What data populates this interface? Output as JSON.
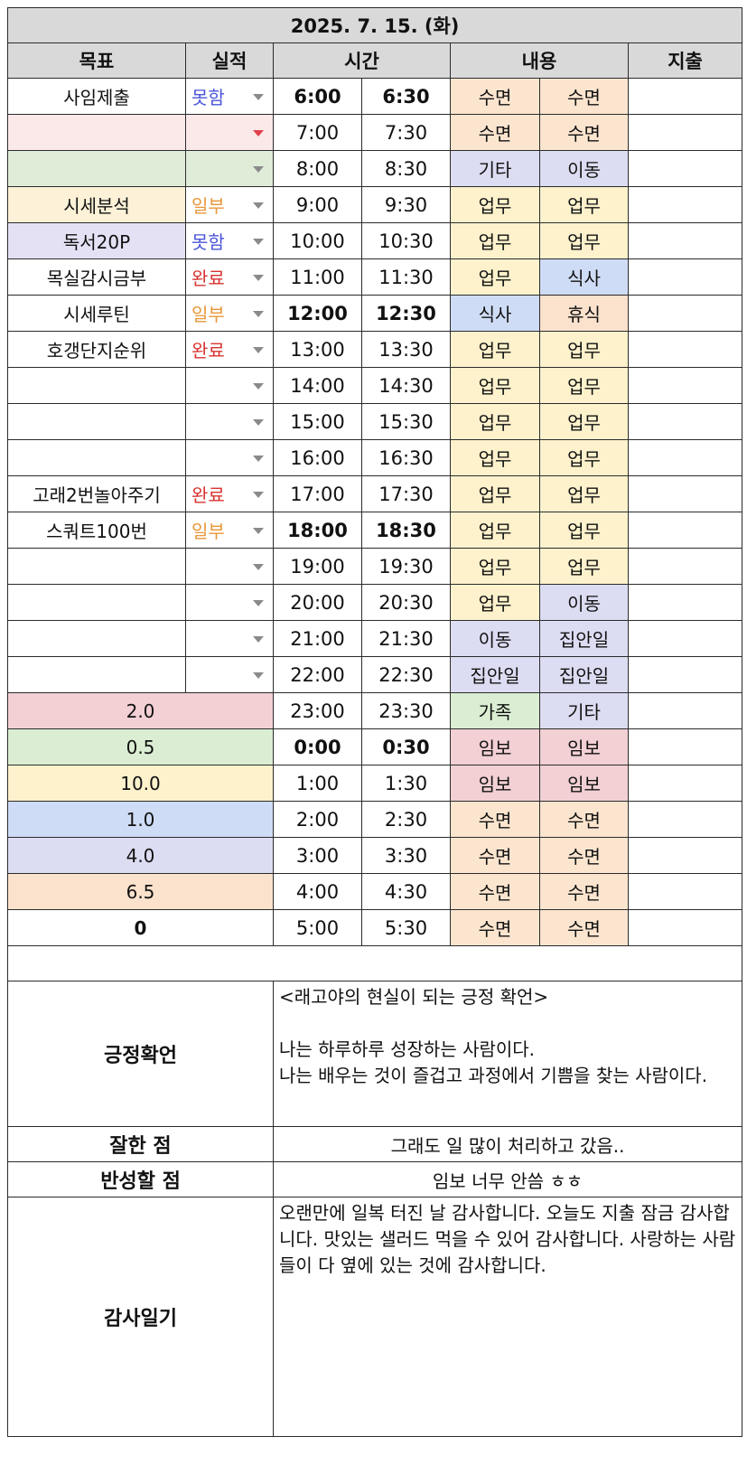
{
  "date": "2025. 7. 15. (화)",
  "headers": {
    "goal": "목표",
    "perf": "실적",
    "time": "시간",
    "content": "내용",
    "expense": "지출"
  },
  "colors": {
    "header_bg": "#d9d9d9",
    "sleep": "#fbe5cf",
    "work": "#fdf2cc",
    "etc": "#dcdcf2",
    "meal": "#cfdcf5",
    "rest": "#fbe2cd",
    "family": "#dbeed3",
    "study": "#f2d0d3",
    "goal_pink": "#fbe9ea",
    "goal_green": "#dfecd8",
    "goal_yellow": "#fdf2d8",
    "goal_lavender": "#e4e1f4",
    "perf_fail": "#4a55d8",
    "perf_partial": "#e8973a",
    "perf_done": "#d8322f"
  },
  "rows": [
    {
      "goal": "사임제출",
      "goal_bg": "#ffffff",
      "perf": "못함",
      "perf_color": "#4a55d8",
      "arrow": "gray",
      "t1": "6:00",
      "t2": "6:30",
      "bold": true,
      "c1": "수면",
      "c1bg": "#fbe5cf",
      "c2": "수면",
      "c2bg": "#fbe5cf"
    },
    {
      "goal": "",
      "goal_bg": "#fbe9ea",
      "perf": "",
      "perf_color": "#111111",
      "arrow": "red",
      "perf_bg": "#fbe9ea",
      "t1": "7:00",
      "t2": "7:30",
      "bold": false,
      "c1": "수면",
      "c1bg": "#fbe5cf",
      "c2": "수면",
      "c2bg": "#fbe5cf"
    },
    {
      "goal": "",
      "goal_bg": "#dfecd8",
      "perf": "",
      "perf_color": "#111111",
      "arrow": "gray",
      "perf_bg": "#dfecd8",
      "t1": "8:00",
      "t2": "8:30",
      "bold": false,
      "c1": "기타",
      "c1bg": "#dcdcf2",
      "c2": "이동",
      "c2bg": "#dcdcf2"
    },
    {
      "goal": "시세분석",
      "goal_bg": "#fdf2d8",
      "perf": "일부",
      "perf_color": "#e8973a",
      "arrow": "gray",
      "t1": "9:00",
      "t2": "9:30",
      "bold": false,
      "c1": "업무",
      "c1bg": "#fdf2cc",
      "c2": "업무",
      "c2bg": "#fdf2cc"
    },
    {
      "goal": "독서20P",
      "goal_bg": "#e4e1f4",
      "perf": "못함",
      "perf_color": "#4a55d8",
      "arrow": "gray",
      "t1": "10:00",
      "t2": "10:30",
      "bold": false,
      "c1": "업무",
      "c1bg": "#fdf2cc",
      "c2": "업무",
      "c2bg": "#fdf2cc"
    },
    {
      "goal": "목실감시금부",
      "goal_bg": "#ffffff",
      "perf": "완료",
      "perf_color": "#d8322f",
      "arrow": "gray",
      "t1": "11:00",
      "t2": "11:30",
      "bold": false,
      "c1": "업무",
      "c1bg": "#fdf2cc",
      "c2": "식사",
      "c2bg": "#cfdcf5"
    },
    {
      "goal": "시세루틴",
      "goal_bg": "#ffffff",
      "perf": "일부",
      "perf_color": "#e8973a",
      "arrow": "gray",
      "t1": "12:00",
      "t2": "12:30",
      "bold": true,
      "c1": "식사",
      "c1bg": "#cfdcf5",
      "c2": "휴식",
      "c2bg": "#fbe2cd"
    },
    {
      "goal": "호갱단지순위",
      "goal_bg": "#ffffff",
      "perf": "완료",
      "perf_color": "#d8322f",
      "arrow": "gray",
      "t1": "13:00",
      "t2": "13:30",
      "bold": false,
      "c1": "업무",
      "c1bg": "#fdf2cc",
      "c2": "업무",
      "c2bg": "#fdf2cc"
    },
    {
      "goal": "",
      "goal_bg": "#ffffff",
      "perf": "",
      "perf_color": "#111111",
      "arrow": "gray",
      "t1": "14:00",
      "t2": "14:30",
      "bold": false,
      "c1": "업무",
      "c1bg": "#fdf2cc",
      "c2": "업무",
      "c2bg": "#fdf2cc"
    },
    {
      "goal": "",
      "goal_bg": "#ffffff",
      "perf": "",
      "perf_color": "#111111",
      "arrow": "gray",
      "t1": "15:00",
      "t2": "15:30",
      "bold": false,
      "c1": "업무",
      "c1bg": "#fdf2cc",
      "c2": "업무",
      "c2bg": "#fdf2cc"
    },
    {
      "goal": "",
      "goal_bg": "#ffffff",
      "perf": "",
      "perf_color": "#111111",
      "arrow": "gray",
      "t1": "16:00",
      "t2": "16:30",
      "bold": false,
      "c1": "업무",
      "c1bg": "#fdf2cc",
      "c2": "업무",
      "c2bg": "#fdf2cc"
    },
    {
      "goal": "고래2번놀아주기",
      "goal_bg": "#ffffff",
      "perf": "완료",
      "perf_color": "#d8322f",
      "arrow": "gray",
      "t1": "17:00",
      "t2": "17:30",
      "bold": false,
      "c1": "업무",
      "c1bg": "#fdf2cc",
      "c2": "업무",
      "c2bg": "#fdf2cc"
    },
    {
      "goal": "스쿼트100번",
      "goal_bg": "#ffffff",
      "perf": "일부",
      "perf_color": "#e8973a",
      "arrow": "gray",
      "t1": "18:00",
      "t2": "18:30",
      "bold": true,
      "c1": "업무",
      "c1bg": "#fdf2cc",
      "c2": "업무",
      "c2bg": "#fdf2cc"
    },
    {
      "goal": "",
      "goal_bg": "#ffffff",
      "perf": "",
      "perf_color": "#111111",
      "arrow": "gray",
      "t1": "19:00",
      "t2": "19:30",
      "bold": false,
      "c1": "업무",
      "c1bg": "#fdf2cc",
      "c2": "업무",
      "c2bg": "#fdf2cc"
    },
    {
      "goal": "",
      "goal_bg": "#ffffff",
      "perf": "",
      "perf_color": "#111111",
      "arrow": "gray",
      "t1": "20:00",
      "t2": "20:30",
      "bold": false,
      "c1": "업무",
      "c1bg": "#fdf2cc",
      "c2": "이동",
      "c2bg": "#dcdcf2"
    },
    {
      "goal": "",
      "goal_bg": "#ffffff",
      "perf": "",
      "perf_color": "#111111",
      "arrow": "gray",
      "t1": "21:00",
      "t2": "21:30",
      "bold": false,
      "c1": "이동",
      "c1bg": "#dcdcf2",
      "c2": "집안일",
      "c2bg": "#dcdcf2"
    },
    {
      "goal": "",
      "goal_bg": "#ffffff",
      "perf": "",
      "perf_color": "#111111",
      "arrow": "gray",
      "t1": "22:00",
      "t2": "22:30",
      "bold": false,
      "c1": "집안일",
      "c1bg": "#dcdcf2",
      "c2": "집안일",
      "c2bg": "#dcdcf2"
    }
  ],
  "summary_rows": [
    {
      "value": "2.0",
      "bg": "#f2d0d3",
      "bold": false,
      "t1": "23:00",
      "t2": "23:30",
      "tbold": false,
      "c1": "가족",
      "c1bg": "#dbeed3",
      "c2": "기타",
      "c2bg": "#dcdcf2"
    },
    {
      "value": "0.5",
      "bg": "#dbeed3",
      "bold": false,
      "t1": "0:00",
      "t2": "0:30",
      "tbold": true,
      "c1": "임보",
      "c1bg": "#f2d0d3",
      "c2": "임보",
      "c2bg": "#f2d0d3"
    },
    {
      "value": "10.0",
      "bg": "#fdf2cc",
      "bold": false,
      "t1": "1:00",
      "t2": "1:30",
      "tbold": false,
      "c1": "임보",
      "c1bg": "#f2d0d3",
      "c2": "임보",
      "c2bg": "#f2d0d3"
    },
    {
      "value": "1.0",
      "bg": "#cfdcf5",
      "bold": false,
      "t1": "2:00",
      "t2": "2:30",
      "tbold": false,
      "c1": "수면",
      "c1bg": "#fbe5cf",
      "c2": "수면",
      "c2bg": "#fbe5cf"
    },
    {
      "value": "4.0",
      "bg": "#dcdcf2",
      "bold": false,
      "t1": "3:00",
      "t2": "3:30",
      "tbold": false,
      "c1": "수면",
      "c1bg": "#fbe5cf",
      "c2": "수면",
      "c2bg": "#fbe5cf"
    },
    {
      "value": "6.5",
      "bg": "#fbe2cd",
      "bold": false,
      "t1": "4:00",
      "t2": "4:30",
      "tbold": false,
      "c1": "수면",
      "c1bg": "#fbe5cf",
      "c2": "수면",
      "c2bg": "#fbe5cf"
    },
    {
      "value": "0",
      "bg": "#ffffff",
      "bold": true,
      "t1": "5:00",
      "t2": "5:30",
      "tbold": false,
      "c1": "수면",
      "c1bg": "#fbe5cf",
      "c2": "수면",
      "c2bg": "#fbe5cf"
    }
  ],
  "affirmation": {
    "label": "긍정확언",
    "title": "<래고야의 현실이 되는 긍정 확언>",
    "line1": "나는 하루하루 성장하는 사람이다.",
    "line2": "나는 배우는 것이 즐겁고 과정에서 기쁨을 찾는 사람이다."
  },
  "good": {
    "label": "잘한 점",
    "text": "그래도 일 많이 처리하고 갔음.."
  },
  "reflect": {
    "label": "반성할 점",
    "text": "임보 너무 안씀 ㅎㅎ"
  },
  "gratitude": {
    "label": "감사일기",
    "text": "오랜만에 일복 터진 날 감사합니다. 오늘도 지출 잠금 감사합니다. 맛있는 샐러드 먹을 수 있어 감사합니다. 사랑하는 사람들이 다 옆에 있는 것에 감사합니다."
  }
}
